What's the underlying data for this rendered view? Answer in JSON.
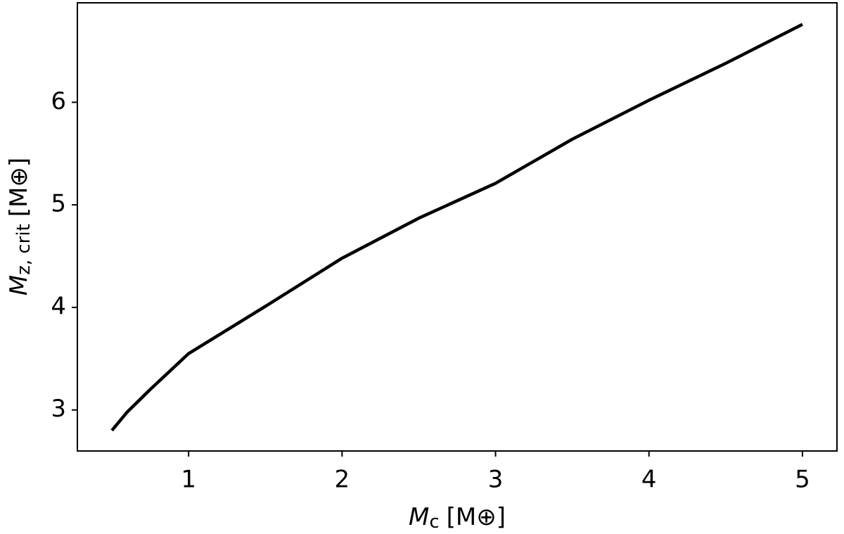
{
  "chart_data": {
    "type": "line",
    "x_label": {
      "symbol": "M",
      "subscript": "c",
      "unit": "[M⊕]"
    },
    "y_label": {
      "symbol": "M",
      "subscript": "z, crit",
      "unit": "[M⊕]"
    },
    "x": [
      0.5,
      0.6,
      0.75,
      1,
      1.5,
      2,
      2.5,
      3,
      3.5,
      4,
      4.5,
      5
    ],
    "series": [
      {
        "color": "#000000",
        "values": [
          2.8,
          2.98,
          3.2,
          3.55,
          4.01,
          4.48,
          4.87,
          5.21,
          5.64,
          6.02,
          6.38,
          6.76
        ]
      }
    ],
    "xlim": [
      0.275,
      5.225
    ],
    "ylim": [
      2.6,
      6.97
    ],
    "xticks": [
      1,
      2,
      3,
      4,
      5
    ],
    "yticks": [
      3,
      4,
      5,
      6
    ],
    "grid": false
  }
}
